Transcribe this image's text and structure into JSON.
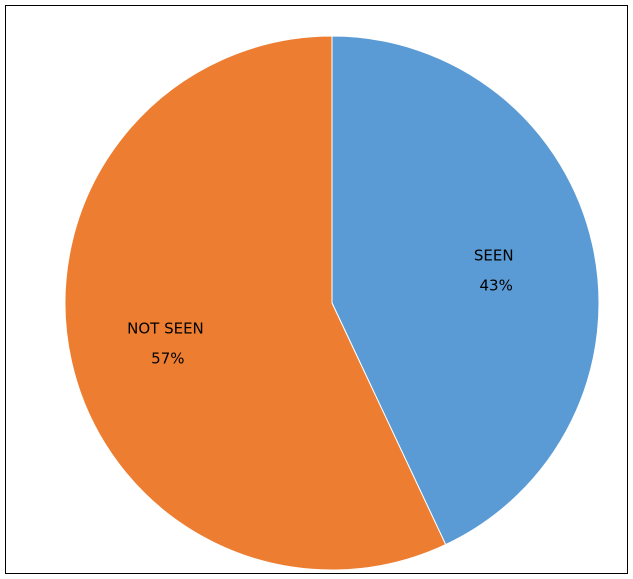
{
  "chart_data": {
    "type": "pie",
    "categories": [
      "SEEN",
      "NOT SEEN"
    ],
    "values": [
      43,
      57
    ],
    "labels": [
      "SEEN\n43%",
      "NOT SEEN\n57%"
    ],
    "colors": [
      "#5b9bd5",
      "#ed7d31"
    ],
    "start_angle_deg": 0,
    "direction": "clockwise",
    "legend": "none"
  }
}
